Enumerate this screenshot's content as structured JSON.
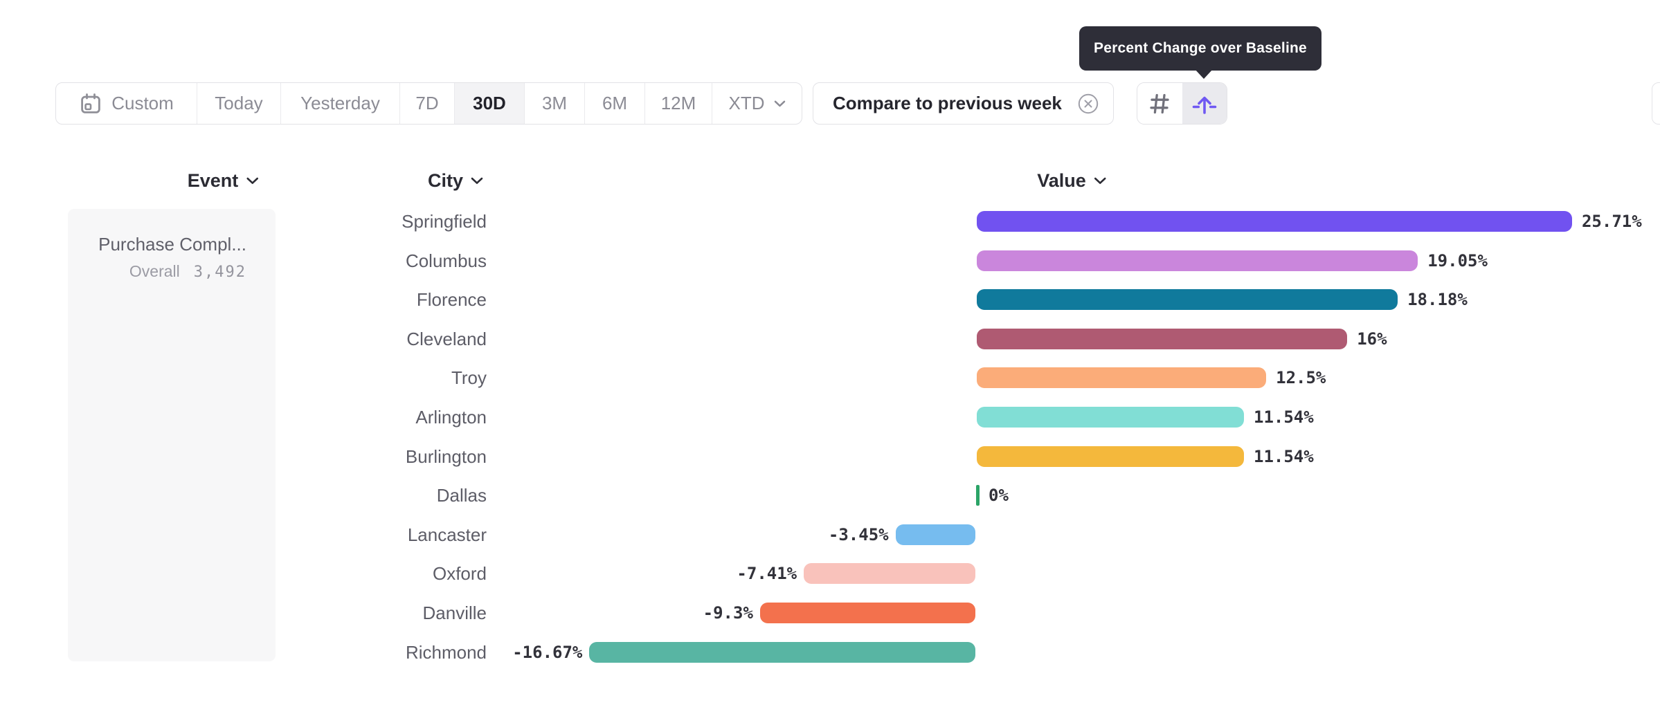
{
  "tooltip": {
    "text": "Percent Change over Baseline"
  },
  "toolbar": {
    "date_ranges": [
      {
        "id": "custom",
        "label": "Custom",
        "icon": "calendar-icon",
        "selected": false
      },
      {
        "id": "today",
        "label": "Today",
        "selected": false
      },
      {
        "id": "yesterday",
        "label": "Yesterday",
        "selected": false
      },
      {
        "id": "7d",
        "label": "7D",
        "selected": false
      },
      {
        "id": "30d",
        "label": "30D",
        "selected": true
      },
      {
        "id": "3m",
        "label": "3M",
        "selected": false
      },
      {
        "id": "6m",
        "label": "6M",
        "selected": false
      },
      {
        "id": "12m",
        "label": "12M",
        "selected": false
      },
      {
        "id": "xtd",
        "label": "XTD",
        "chevron": true,
        "selected": false
      }
    ],
    "compare_chip": {
      "label": "Compare to previous week",
      "close_icon": "x-circle-icon"
    },
    "view_toggle": [
      {
        "id": "numbers",
        "icon": "hash-icon",
        "selected": false
      },
      {
        "id": "percent-change",
        "icon": "percent-change-baseline-icon",
        "selected": true,
        "accent": "#6F58F2"
      }
    ]
  },
  "columns": [
    {
      "id": "event",
      "label": "Event"
    },
    {
      "id": "city",
      "label": "City"
    },
    {
      "id": "value",
      "label": "Value"
    }
  ],
  "event_panel": {
    "event_name": "Purchase Compl...",
    "segment_label": "Overall",
    "segment_value": "3,492"
  },
  "chart_data": {
    "type": "bar",
    "orientation": "horizontal",
    "value_unit": "percent change over baseline",
    "baseline": 0,
    "categories": [
      "Springfield",
      "Columbus",
      "Florence",
      "Cleveland",
      "Troy",
      "Arlington",
      "Burlington",
      "Dallas",
      "Lancaster",
      "Oxford",
      "Danville",
      "Richmond"
    ],
    "values": [
      25.71,
      19.05,
      18.18,
      16,
      12.5,
      11.54,
      11.54,
      0,
      -3.45,
      -7.41,
      -9.3,
      -16.67
    ],
    "labels": [
      "25.71%",
      "19.05%",
      "18.18%",
      "16%",
      "12.5%",
      "11.54%",
      "11.54%",
      "0%",
      "-3.45%",
      "-7.41%",
      "-9.3%",
      "-16.67%"
    ],
    "colors": [
      "#7152F0",
      "#CA86DC",
      "#107A9C",
      "#AF5A72",
      "#FBAC79",
      "#81DED5",
      "#F4B83C",
      "#2BA467",
      "#76BCEF",
      "#F9C2BB",
      "#F3714D",
      "#58B5A3"
    ],
    "zero_marker_color": "#2BA467",
    "legend": "none",
    "grid": "off"
  }
}
